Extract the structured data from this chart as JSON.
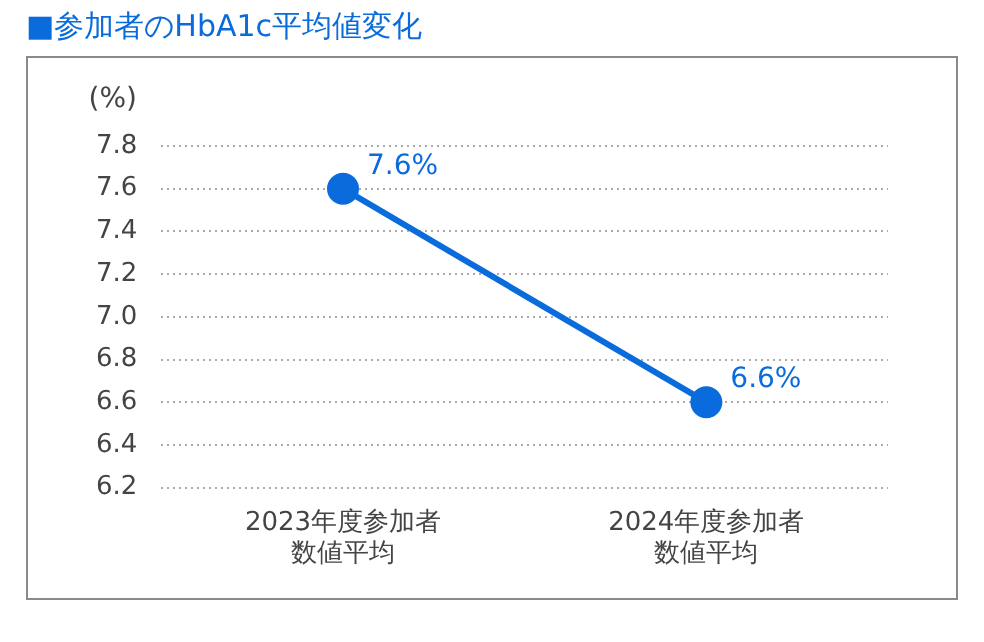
{
  "chart_data": {
    "type": "line",
    "title": "■参加者のHbA1c平均値変化",
    "ylabel": "(%)",
    "categories": [
      "2023年度参加者数値平均",
      "2024年度参加者数値平均"
    ],
    "series": [
      {
        "color": "#0a6cdc",
        "values": [
          7.6,
          6.6
        ],
        "value_labels": [
          "7.6%",
          "6.6%"
        ]
      }
    ],
    "ylim": [
      6.2,
      7.8
    ],
    "yticks": [
      6.2,
      6.4,
      6.6,
      6.8,
      {
        "value": 7,
        "label": "7.0"
      },
      7.2,
      7.4,
      7.6,
      7.8
    ],
    "grid": "y",
    "legend": false,
    "marker": "circle",
    "line_style": "solid"
  }
}
